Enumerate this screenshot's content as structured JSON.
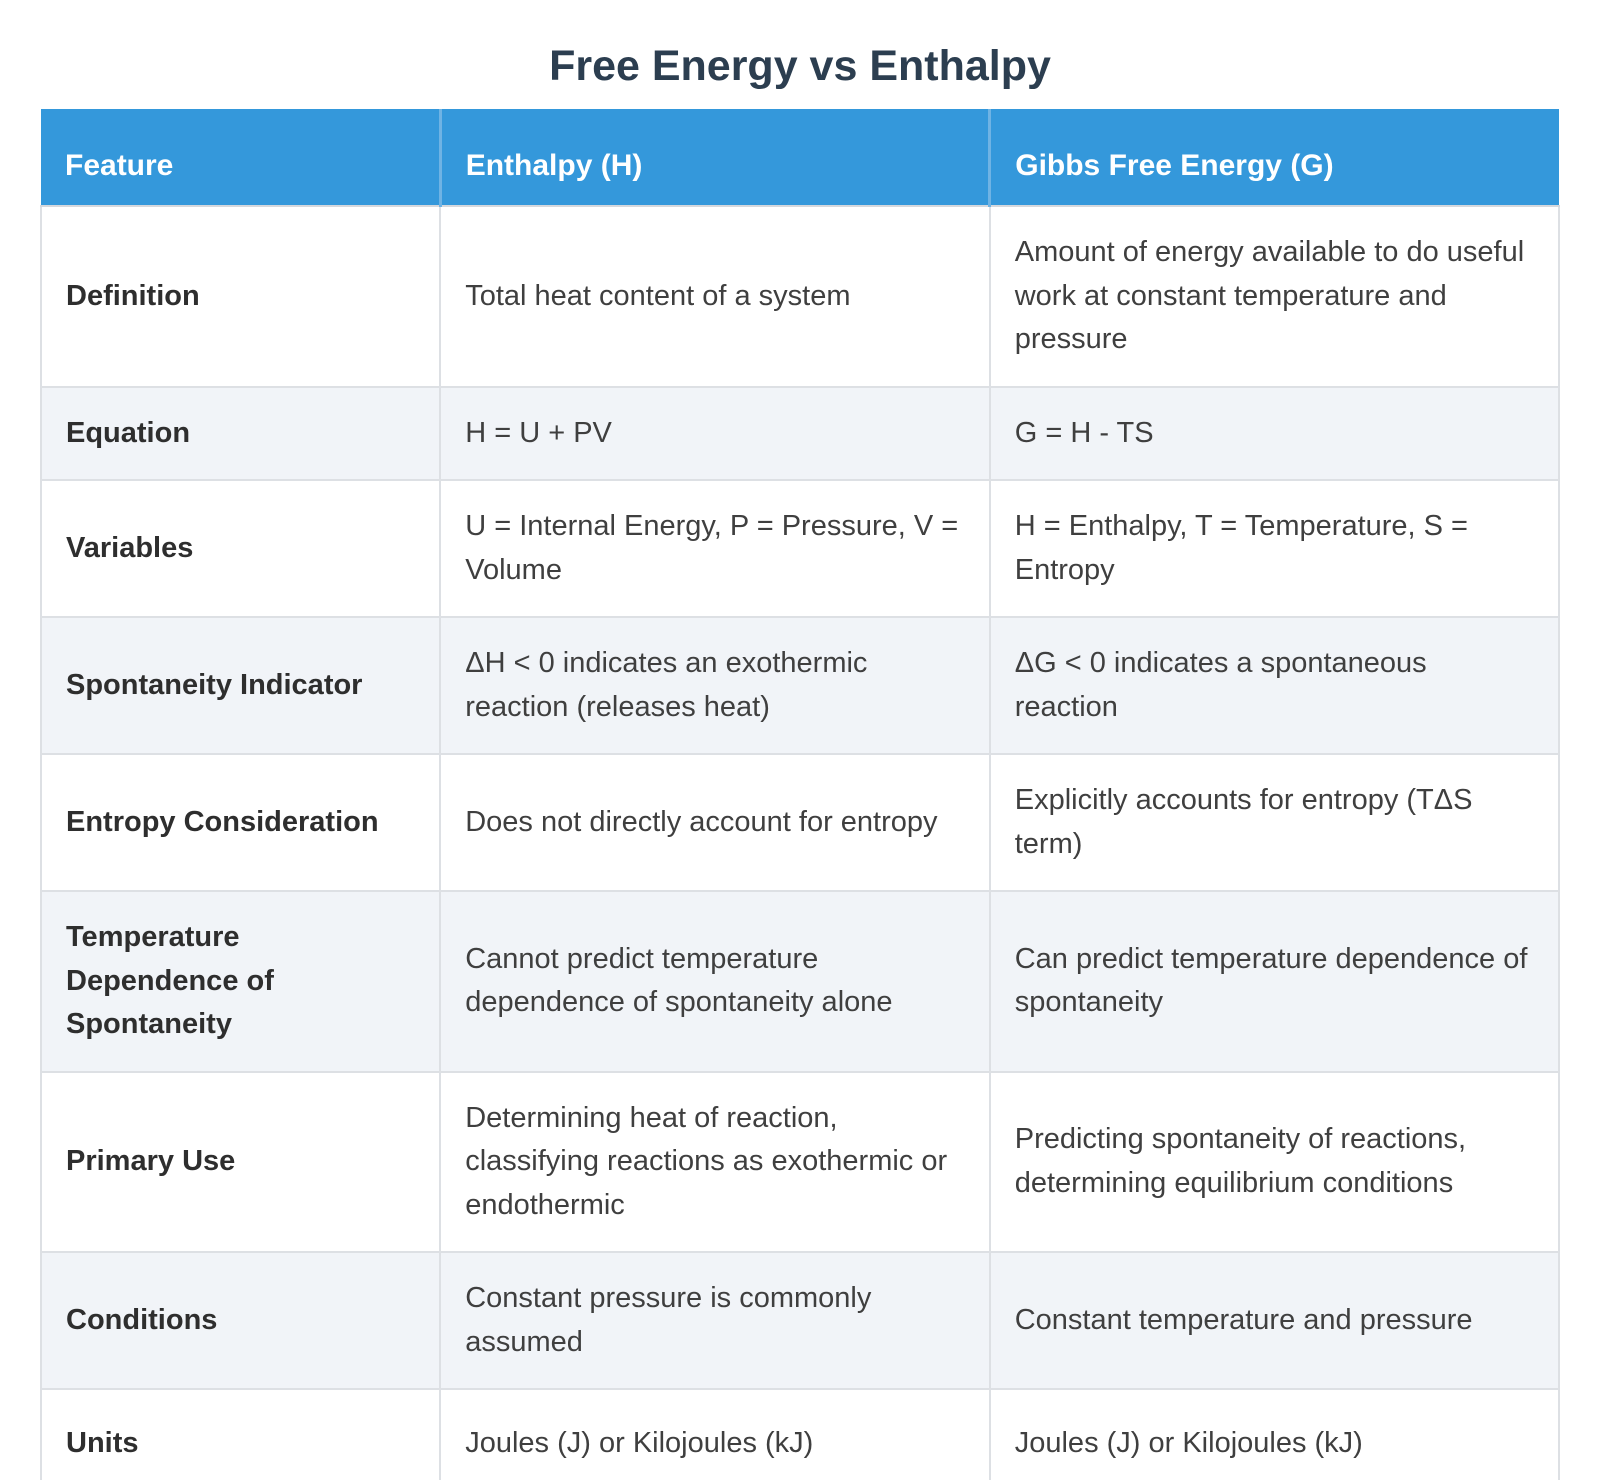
{
  "title": "Free Energy vs Enthalpy",
  "colors": {
    "header_bg": "#3498db",
    "header_text": "#ffffff",
    "title_text": "#2c3e50",
    "row_bg": "#ffffff",
    "row_alt_bg": "#f1f4f8",
    "grid_border": "#dde0e4",
    "body_text": "#3f3f3f",
    "feature_text": "#2e2e2e"
  },
  "chart_data": {
    "type": "table",
    "title": "Free Energy vs Enthalpy",
    "columns": [
      "Feature",
      "Enthalpy (H)",
      "Gibbs Free Energy (G)"
    ],
    "rows": [
      {
        "feature": "Definition",
        "enthalpy": "Total heat content of a system",
        "gibbs": "Amount of energy available to do useful work at constant temperature and pressure"
      },
      {
        "feature": "Equation",
        "enthalpy": "H = U + PV",
        "gibbs": "G = H - TS"
      },
      {
        "feature": "Variables",
        "enthalpy": "U = Internal Energy, P = Pressure, V = Volume",
        "gibbs": "H = Enthalpy, T = Temperature, S = Entropy"
      },
      {
        "feature": "Spontaneity Indicator",
        "enthalpy": "ΔH < 0 indicates an exothermic reaction (releases heat)",
        "gibbs": "ΔG < 0 indicates a spontaneous reaction"
      },
      {
        "feature": "Entropy Consideration",
        "enthalpy": "Does not directly account for entropy",
        "gibbs": "Explicitly accounts for entropy (TΔS term)"
      },
      {
        "feature": "Temperature Dependence of Spontaneity",
        "enthalpy": "Cannot predict temperature dependence of spontaneity alone",
        "gibbs": "Can predict temperature dependence of spontaneity"
      },
      {
        "feature": "Primary Use",
        "enthalpy": "Determining heat of reaction, classifying reactions as exothermic or endothermic",
        "gibbs": "Predicting spontaneity of reactions, determining equilibrium conditions"
      },
      {
        "feature": "Conditions",
        "enthalpy": "Constant pressure is commonly assumed",
        "gibbs": "Constant temperature and pressure"
      },
      {
        "feature": "Units",
        "enthalpy": "Joules (J) or Kilojoules (kJ)",
        "gibbs": "Joules (J) or Kilojoules (kJ)"
      }
    ]
  }
}
